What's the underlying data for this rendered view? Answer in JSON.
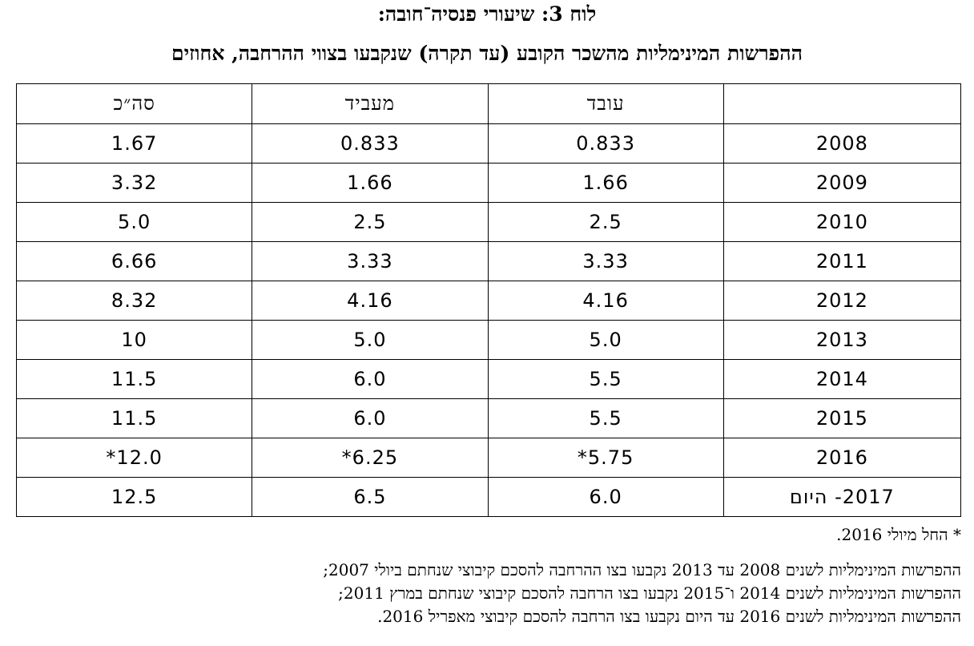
{
  "title": {
    "line1": "לוח 3: שיעורי פנסיה־חובה:",
    "line2": "ההפרשות המינימליות מהשכר הקובע (עד תקרה) שנקבעו בצווי ההרחבה, אחוזים"
  },
  "table": {
    "headers": [
      "",
      "עובד",
      "מעביד",
      "סה״כ"
    ],
    "rows": [
      {
        "year": "2008",
        "worker": "0.833",
        "employer": "0.833",
        "total": "1.67"
      },
      {
        "year": "2009",
        "worker": "1.66",
        "employer": "1.66",
        "total": "3.32"
      },
      {
        "year": "2010",
        "worker": "2.5",
        "employer": "2.5",
        "total": "5.0"
      },
      {
        "year": "2011",
        "worker": "3.33",
        "employer": "3.33",
        "total": "6.66"
      },
      {
        "year": "2012",
        "worker": "4.16",
        "employer": "4.16",
        "total": "8.32"
      },
      {
        "year": "2013",
        "worker": "5.0",
        "employer": "5.0",
        "total": "10"
      },
      {
        "year": "2014",
        "worker": "5.5",
        "employer": "6.0",
        "total": "11.5"
      },
      {
        "year": "2015",
        "worker": "5.5",
        "employer": "6.0",
        "total": "11.5"
      },
      {
        "year": "2016",
        "worker": "5.75*",
        "employer": "6.25*",
        "total": "12.0*"
      },
      {
        "year": "2017- היום",
        "worker": "6.0",
        "employer": "6.5",
        "total": "12.5"
      }
    ]
  },
  "notes": {
    "star": "* החל מיולי 2016.",
    "line1": "ההפרשות המינימליות לשנים 2008 עד 2013 נקבעו בצו ההרחבה להסכם קיבוצי שנחתם ביולי 2007;",
    "line2": "ההפרשות המינימליות לשנים 2014 ו־2015 נקבעו בצו הרחבה להסכם קיבוצי שנחתם במרץ 2011;",
    "line3": "ההפרשות המינימליות לשנים 2016 עד היום נקבעו בצו הרחבה להסכם קיבוצי מאפריל 2016."
  }
}
